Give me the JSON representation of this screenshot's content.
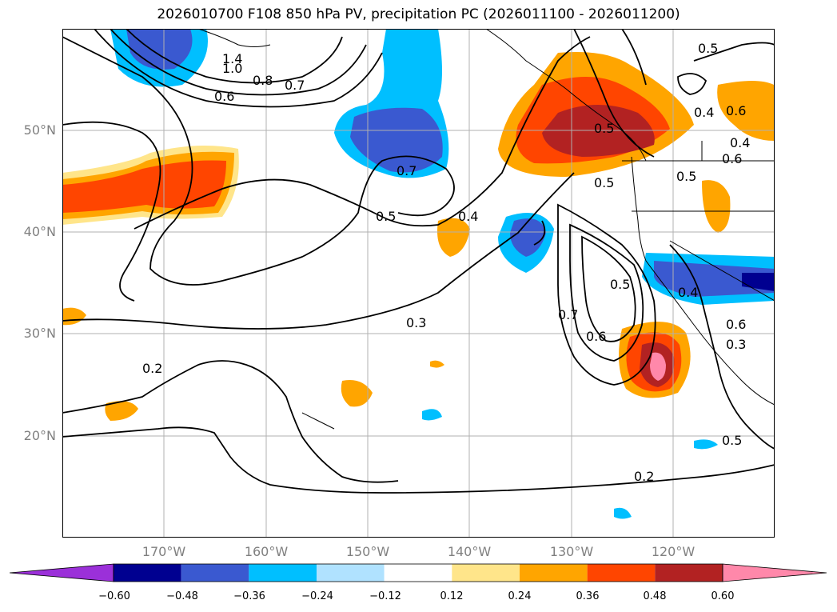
{
  "title": "2026010700 F108 850 hPa PV, precipitation PC (2026011100 - 2026011200)",
  "axes": {
    "lat_labels": [
      "50°N",
      "40°N",
      "30°N",
      "20°N"
    ],
    "lon_labels": [
      "170°W",
      "160°W",
      "150°W",
      "140°W",
      "130°W",
      "120°W"
    ],
    "lon_range": [
      -180,
      -110
    ],
    "lat_range": [
      10,
      60
    ]
  },
  "colorbar": {
    "ticks": [
      "−0.60",
      "−0.48",
      "−0.36",
      "−0.24",
      "−0.12",
      "0.12",
      "0.24",
      "0.36",
      "0.48",
      "0.60"
    ],
    "colors": [
      "#9b30d9",
      "#000090",
      "#3a59d0",
      "#00bfff",
      "#b0e2ff",
      "#ffffff",
      "#ffe58a",
      "#ffa500",
      "#ff4500",
      "#b22222",
      "#ff88aa"
    ]
  },
  "contour_labels": [
    "1.4",
    "1.0",
    "0.8",
    "0.7",
    "0.6",
    "0.5",
    "0.4",
    "0.6",
    "0.7",
    "0.5",
    "0.4",
    "0.5",
    "0.6",
    "0.5",
    "0.4",
    "0.5",
    "0.3",
    "0.7",
    "0.6",
    "0.5",
    "0.4",
    "0.6",
    "0.3",
    "0.2",
    "0.5",
    "0.2"
  ],
  "colors": {
    "pos_low": "#ffe58a",
    "pos_mid": "#ffa500",
    "pos_high": "#ff4500",
    "pos_top": "#b22222",
    "pos_max": "#ff88aa",
    "neg_low": "#b0e2ff",
    "neg_mid": "#00bfff",
    "neg_high": "#3a59d0",
    "neg_top": "#000090"
  }
}
